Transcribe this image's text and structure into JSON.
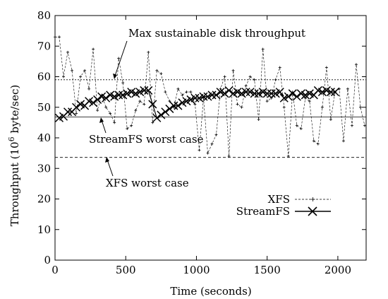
{
  "chart_data": {
    "type": "line",
    "title": "",
    "xlabel": "Time (seconds)",
    "ylabel_prefix": "Throughput (10",
    "ylabel_sup": "6",
    "ylabel_suffix": " byte/sec)",
    "xlim": [
      0,
      2200
    ],
    "ylim": [
      0,
      80
    ],
    "x_ticks": [
      0,
      500,
      1000,
      1500,
      2000
    ],
    "y_ticks": [
      0,
      10,
      20,
      30,
      40,
      50,
      60,
      70,
      80
    ],
    "grid": false,
    "legend_position": "bottom-right",
    "series": [
      {
        "name": "XFS",
        "marker": "plus",
        "dash": "dashed",
        "x": [
          0,
          30,
          60,
          90,
          120,
          150,
          180,
          210,
          240,
          270,
          300,
          330,
          360,
          390,
          420,
          450,
          480,
          510,
          540,
          570,
          600,
          630,
          660,
          690,
          720,
          750,
          780,
          810,
          840,
          870,
          900,
          930,
          960,
          990,
          1020,
          1050,
          1080,
          1110,
          1140,
          1170,
          1200,
          1230,
          1260,
          1290,
          1320,
          1350,
          1380,
          1410,
          1440,
          1470,
          1500,
          1530,
          1560,
          1590,
          1620,
          1650,
          1680,
          1710,
          1740,
          1770,
          1800,
          1830,
          1860,
          1890,
          1920,
          1950,
          1980,
          2010,
          2040,
          2070,
          2100,
          2130,
          2160,
          2190
        ],
        "y": [
          73,
          73,
          60,
          68,
          62,
          48,
          60,
          62,
          56,
          69,
          49,
          54,
          50,
          48,
          45,
          66,
          58,
          43,
          44,
          49,
          52,
          51,
          68,
          45,
          62,
          61,
          55,
          52,
          50,
          56,
          54,
          55,
          55,
          51,
          36,
          53,
          35,
          38,
          41,
          56,
          60,
          34,
          62,
          51,
          50,
          57,
          60,
          59,
          46,
          69,
          52,
          53,
          59,
          63,
          50,
          34,
          55,
          44,
          43,
          53,
          52,
          39,
          38,
          50,
          63,
          46,
          55,
          56,
          39,
          56,
          44,
          64,
          50,
          44
        ]
      },
      {
        "name": "StreamFS",
        "marker": "x",
        "dash": "solid",
        "x": [
          30,
          60,
          90,
          120,
          150,
          180,
          210,
          240,
          270,
          300,
          330,
          360,
          390,
          420,
          450,
          480,
          510,
          540,
          570,
          600,
          630,
          660,
          690,
          720,
          750,
          780,
          810,
          840,
          870,
          900,
          930,
          960,
          990,
          1020,
          1050,
          1080,
          1110,
          1140,
          1170,
          1200,
          1230,
          1260,
          1290,
          1320,
          1350,
          1380,
          1410,
          1440,
          1470,
          1500,
          1530,
          1560,
          1590,
          1620,
          1650,
          1680,
          1710,
          1740,
          1770,
          1800,
          1830,
          1860,
          1890,
          1920,
          1950,
          1980
        ],
        "y": [
          46.5,
          47,
          48.5,
          48.5,
          50,
          51,
          50.5,
          52,
          51.5,
          52.5,
          53.5,
          53,
          54,
          53.5,
          54,
          54,
          54.5,
          55,
          54.5,
          55,
          55.5,
          55.5,
          51,
          46.5,
          47.5,
          48.5,
          49.5,
          50.5,
          50.5,
          51.5,
          52,
          52.5,
          53,
          53,
          53.5,
          53.5,
          54,
          54,
          55,
          54.5,
          55.5,
          54.5,
          55,
          54.5,
          55,
          55,
          54.5,
          54.5,
          55,
          54.5,
          54.5,
          54.5,
          55,
          53,
          53.5,
          54.5,
          53.5,
          54.5,
          54,
          54.5,
          54,
          55.5,
          55,
          55.5,
          55,
          55
        ]
      }
    ],
    "reference_lines": [
      {
        "value": 59,
        "dash": "dotted",
        "label": "Max sustainable disk throughput"
      },
      {
        "value": 46.8,
        "dash": "solid",
        "label": "StreamFS worst case"
      },
      {
        "value": 33.6,
        "dash": "dashed",
        "label": "XFS worst case"
      }
    ]
  }
}
